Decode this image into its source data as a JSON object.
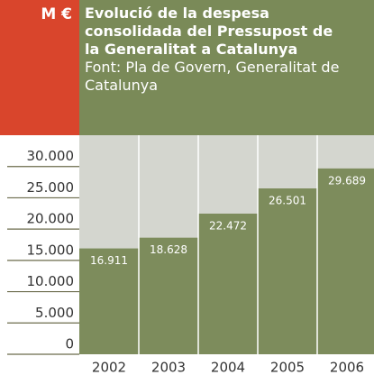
{
  "chart_data": {
    "type": "bar",
    "title": "Evolució de la despesa consolidada del Pressupost de la Generalitat a Catalunya",
    "subtitle": "Font: Pla de Govern, Generalitat de Catalunya",
    "y_label": "M €",
    "categories": [
      "2002",
      "2003",
      "2004",
      "2005",
      "2006"
    ],
    "values": [
      16911,
      18628,
      22472,
      26501,
      29689
    ],
    "value_labels": [
      "16.911",
      "18.628",
      "22.472",
      "26.501",
      "29.689"
    ],
    "color": "#7d8c5c",
    "ylim": [
      0,
      35000
    ],
    "yticks": [
      0,
      {
        "value": 5000,
        "label": "5.000"
      },
      {
        "value": 10000,
        "label": "10.000"
      },
      {
        "value": 15000,
        "label": "15.000"
      },
      {
        "value": 20000,
        "label": "20.000"
      },
      {
        "value": 25000,
        "label": "25.000"
      },
      {
        "value": 30000,
        "label": "30.000"
      }
    ]
  }
}
